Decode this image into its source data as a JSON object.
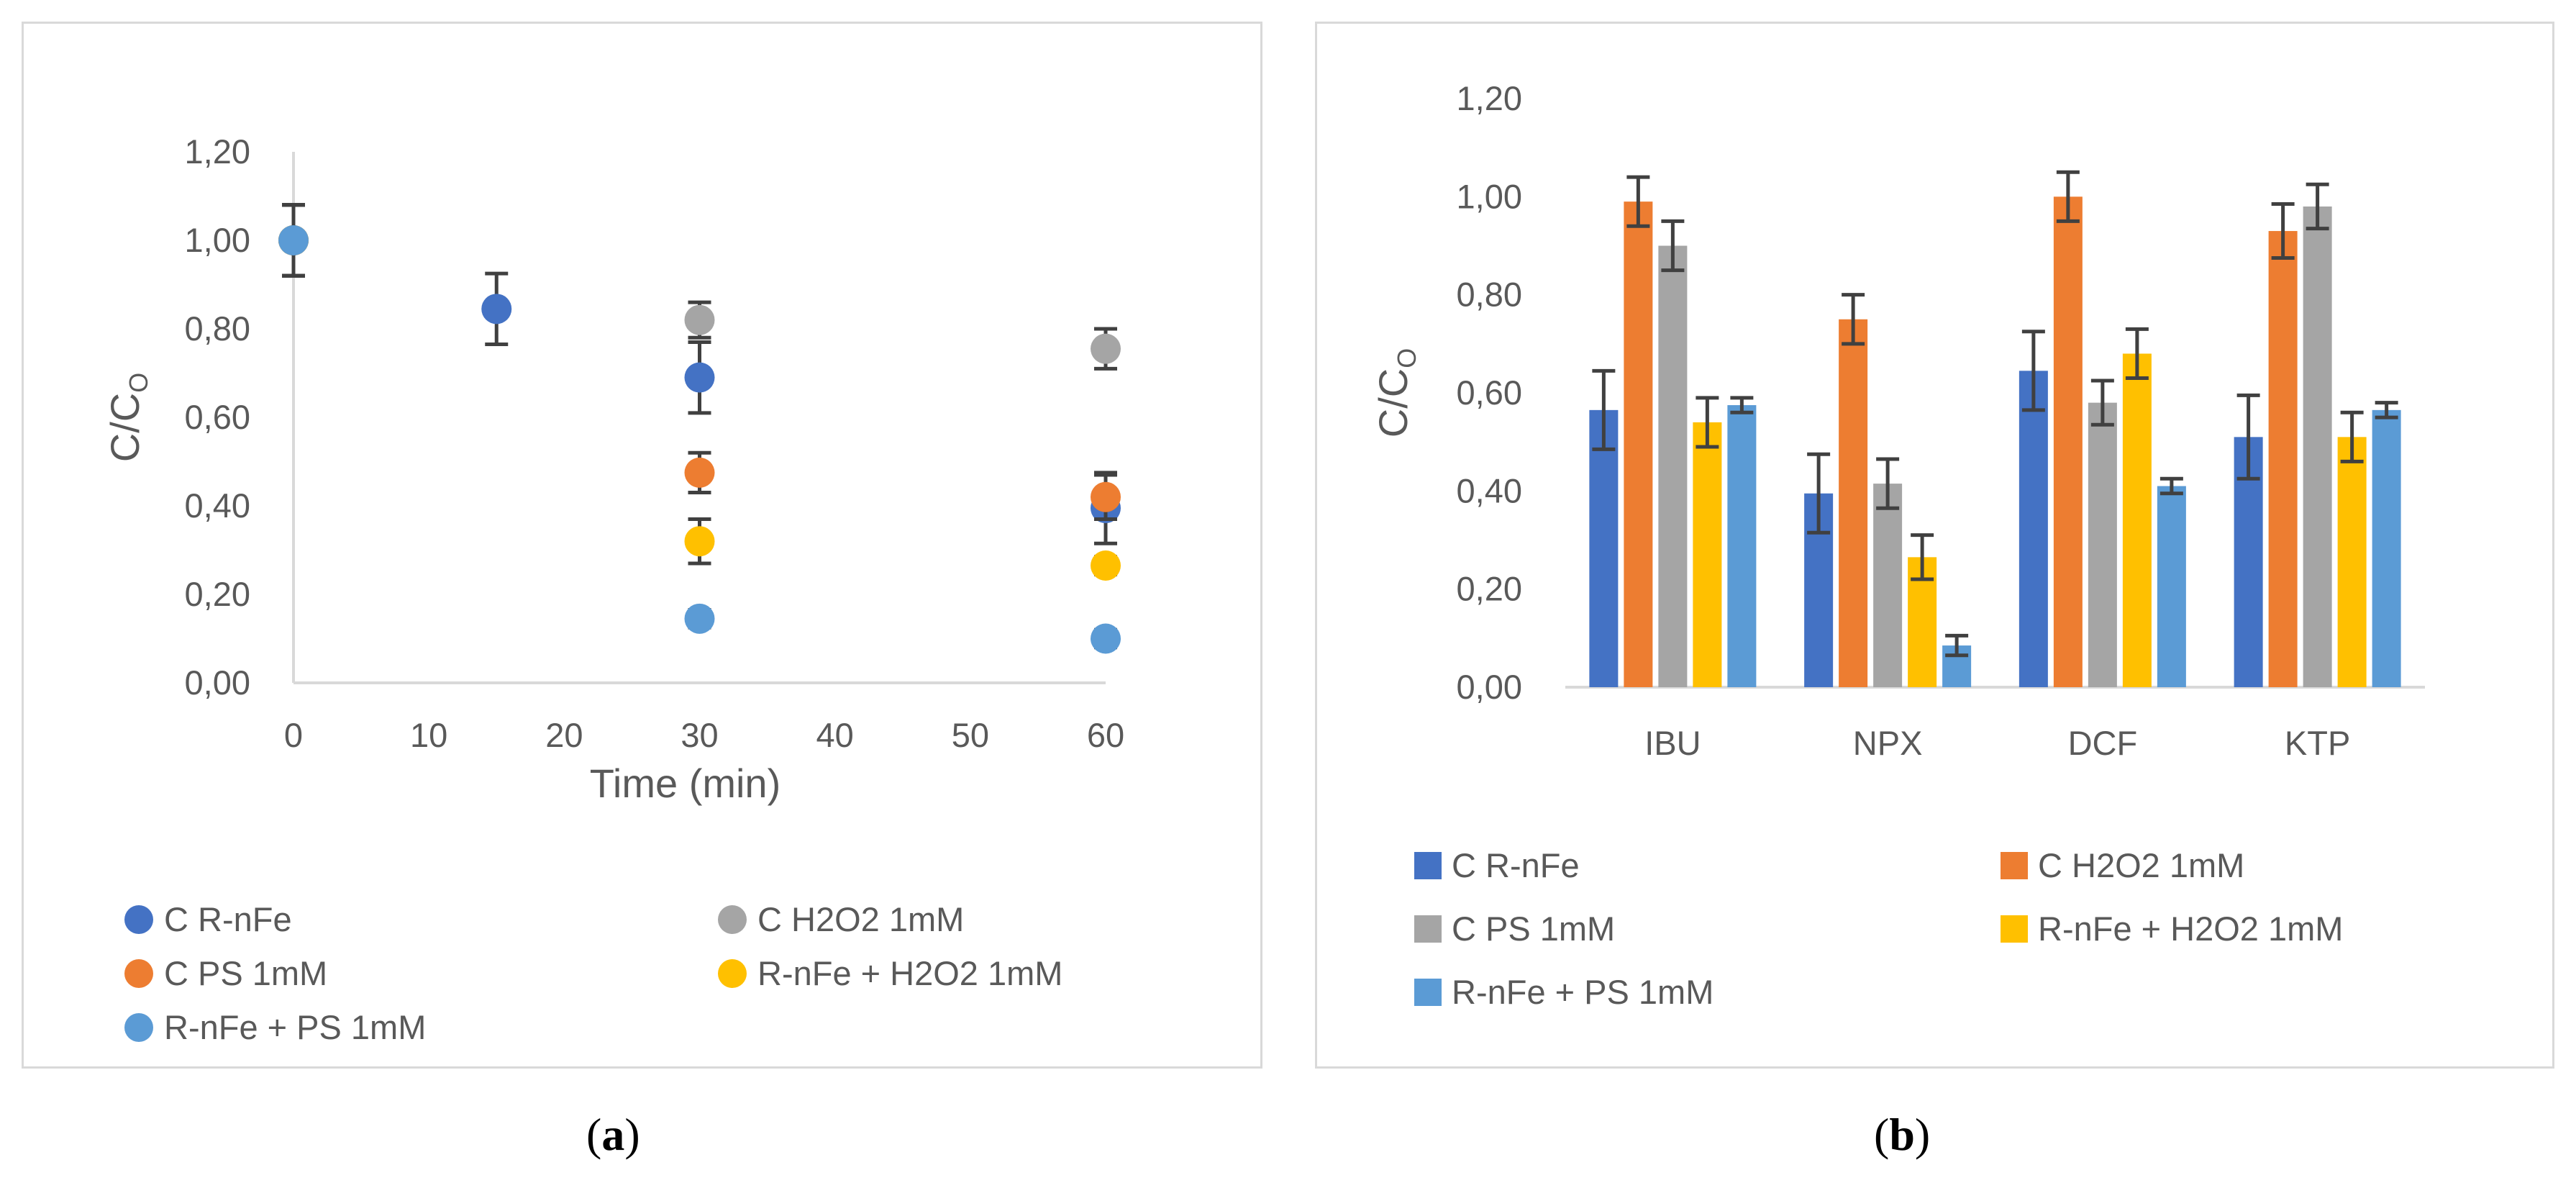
{
  "chart_data": [
    {
      "type": "scatter",
      "panel": "a",
      "title": "",
      "xlabel": "Time (min)",
      "ylabel": "C/C0",
      "ylabel_main": "C/C",
      "ylabel_sub": "O",
      "xlim": [
        0,
        60
      ],
      "ylim": [
        0,
        1.2
      ],
      "xticks": [
        "0",
        "10",
        "20",
        "30",
        "40",
        "50",
        "60"
      ],
      "yticks": [
        "0,00",
        "0,20",
        "0,40",
        "0,60",
        "0,80",
        "1,00",
        "1,20"
      ],
      "legend_position": "bottom",
      "series": [
        {
          "name": "C R-nFe",
          "color": "#4472C4",
          "points": [
            {
              "x": 0,
              "y": 1.0,
              "err": 0.08
            },
            {
              "x": 15,
              "y": 0.845,
              "err": 0.08
            },
            {
              "x": 30,
              "y": 0.69,
              "err": 0.08
            },
            {
              "x": 60,
              "y": 0.395,
              "err": 0.08
            }
          ]
        },
        {
          "name": "C H2O2 1mM",
          "color": "#A5A5A5",
          "points": [
            {
              "x": 0,
              "y": 1.0,
              "err": 0.08
            },
            {
              "x": 30,
              "y": 0.82,
              "err": 0.04
            },
            {
              "x": 60,
              "y": 0.755,
              "err": 0.045
            }
          ]
        },
        {
          "name": "C PS 1mM",
          "color": "#ED7D31",
          "points": [
            {
              "x": 0,
              "y": 1.0,
              "err": 0.08
            },
            {
              "x": 30,
              "y": 0.475,
              "err": 0.045
            },
            {
              "x": 60,
              "y": 0.42,
              "err": 0.05
            }
          ]
        },
        {
          "name": "R-nFe + H2O2 1mM",
          "color": "#FFC000",
          "points": [
            {
              "x": 0,
              "y": 1.0,
              "err": 0.08
            },
            {
              "x": 30,
              "y": 0.32,
              "err": 0.05
            },
            {
              "x": 60,
              "y": 0.265,
              "err": 0.02
            }
          ]
        },
        {
          "name": "R-nFe + PS 1mM",
          "color": "#5B9BD5",
          "points": [
            {
              "x": 0,
              "y": 1.0,
              "err": 0.08
            },
            {
              "x": 30,
              "y": 0.145,
              "err": 0.02
            },
            {
              "x": 60,
              "y": 0.1,
              "err": 0.02
            }
          ]
        }
      ]
    },
    {
      "type": "bar",
      "panel": "b",
      "title": "",
      "xlabel": "",
      "ylabel": "C/C0",
      "ylabel_main": "C/C",
      "ylabel_sub": "O",
      "ylim": [
        0,
        1.2
      ],
      "yticks": [
        "0,00",
        "0,20",
        "0,40",
        "0,60",
        "0,80",
        "1,00",
        "1,20"
      ],
      "categories": [
        "IBU",
        "NPX",
        "DCF",
        "KTP"
      ],
      "legend_position": "bottom",
      "series": [
        {
          "name": "C R-nFe",
          "color": "#4472C4",
          "values": [
            0.565,
            0.395,
            0.645,
            0.51
          ],
          "errors": [
            0.08,
            0.08,
            0.08,
            0.085
          ]
        },
        {
          "name": "C H2O2 1mM",
          "color": "#ED7D31",
          "values": [
            0.99,
            0.75,
            1.0,
            0.93
          ],
          "errors": [
            0.05,
            0.05,
            0.05,
            0.055
          ]
        },
        {
          "name": "C PS 1mM",
          "color": "#A5A5A5",
          "values": [
            0.9,
            0.415,
            0.58,
            0.98
          ],
          "errors": [
            0.05,
            0.05,
            0.045,
            0.045
          ]
        },
        {
          "name": "R-nFe + H2O2 1mM",
          "color": "#FFC000",
          "values": [
            0.54,
            0.265,
            0.68,
            0.51
          ],
          "errors": [
            0.05,
            0.045,
            0.05,
            0.05
          ]
        },
        {
          "name": "R-nFe + PS 1mM",
          "color": "#5B9BD5",
          "values": [
            0.575,
            0.085,
            0.41,
            0.565
          ],
          "errors": [
            0.015,
            0.02,
            0.015,
            0.015
          ]
        }
      ]
    }
  ],
  "captions": {
    "a": {
      "open": "(",
      "letter": "a",
      "close": ")"
    },
    "b": {
      "open": "(",
      "letter": "b",
      "close": ")"
    }
  },
  "colors": {
    "axis": "#d9d9d9",
    "text": "#595959",
    "error_bar": "#404040",
    "border": "#d9d9d9"
  }
}
